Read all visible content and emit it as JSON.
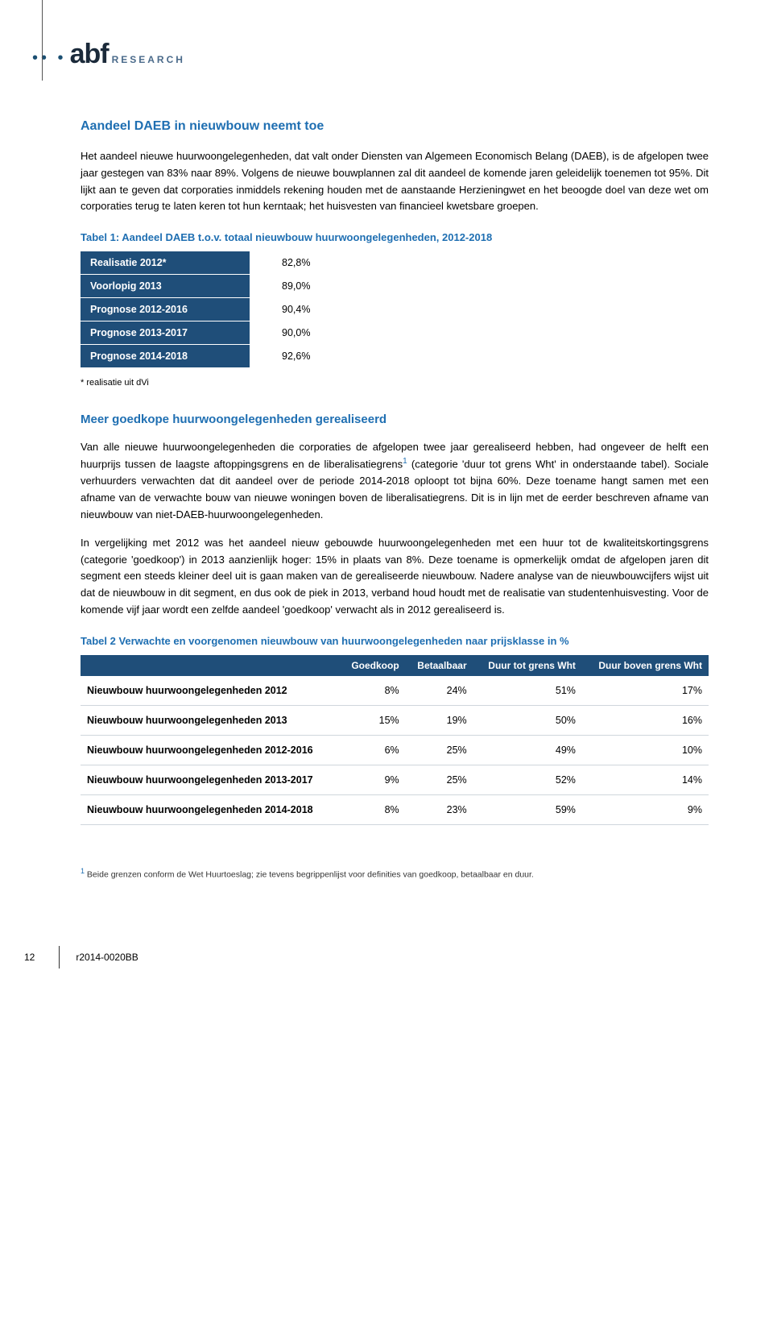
{
  "logo": {
    "dots": "•• •",
    "abf": "abf",
    "research": "RESEARCH"
  },
  "section1": {
    "title": "Aandeel DAEB in nieuwbouw neemt toe",
    "para": "Het aandeel nieuwe huurwoongelegenheden, dat valt onder Diensten van Algemeen Economisch Belang (DAEB), is de afgelopen twee jaar gestegen van 83% naar 89%. Volgens de nieuwe bouwplannen zal dit aandeel de komende jaren geleidelijk toenemen tot 95%. Dit lijkt aan te geven dat corporaties inmiddels rekening houden met de aanstaande Herzieningwet en het beoogde doel van deze wet om corporaties terug te laten keren tot hun kerntaak; het huisvesten van financieel kwetsbare groepen."
  },
  "table1": {
    "caption": "Tabel 1: Aandeel DAEB t.o.v. totaal nieuwbouw huurwoongelegenheden, 2012-2018",
    "rows": [
      {
        "label": "Realisatie 2012*",
        "value": "82,8%"
      },
      {
        "label": "Voorlopig 2013",
        "value": "89,0%"
      },
      {
        "label": "Prognose 2012-2016",
        "value": "90,4%"
      },
      {
        "label": "Prognose 2013-2017",
        "value": "90,0%"
      },
      {
        "label": "Prognose 2014-2018",
        "value": "92,6%"
      }
    ],
    "footnote": "* realisatie uit dVi"
  },
  "section2": {
    "title": "Meer goedkope huurwoongelegenheden gerealiseerd",
    "para1a": "Van alle nieuwe huurwoongelegenheden die corporaties de afgelopen twee jaar gerealiseerd hebben, had ongeveer de helft een huurprijs tussen de laagste aftoppingsgrens en de liberalisatiegrens",
    "para1b": " (categorie 'duur tot grens Wht' in onderstaande tabel). Sociale verhuurders verwachten dat dit aandeel over de periode 2014-2018 oploopt tot bijna 60%. Deze toename hangt samen met een afname van de verwachte bouw van nieuwe woningen boven de liberalisatiegrens. Dit is in lijn met de eerder beschreven afname van nieuwbouw van niet-DAEB-huurwoongelegenheden.",
    "para2": "In vergelijking met 2012 was het aandeel nieuw gebouwde huurwoongelegenheden met een huur tot de kwaliteitskortingsgrens (categorie 'goedkoop') in 2013 aanzienlijk hoger: 15% in plaats van 8%. Deze toename is opmerkelijk omdat de afgelopen jaren dit segment een steeds kleiner deel uit is gaan maken van de gerealiseerde nieuwbouw. Nadere analyse van de nieuwbouwcijfers wijst uit dat de nieuwbouw in dit segment, en dus ook de piek in 2013, verband houd houdt met de realisatie van studentenhuisvesting. Voor de komende vijf jaar wordt een zelfde aandeel 'goedkoop' verwacht als in 2012 gerealiseerd is."
  },
  "table2": {
    "caption": "Tabel 2 Verwachte en voorgenomen nieuwbouw van huurwoongelegenheden naar prijsklasse in %",
    "headers": [
      "",
      "Goedkoop",
      "Betaalbaar",
      "Duur tot grens Wht",
      "Duur boven grens Wht"
    ],
    "rows": [
      {
        "label": "Nieuwbouw huurwoongelegenheden 2012",
        "c1": "8%",
        "c2": "24%",
        "c3": "51%",
        "c4": "17%"
      },
      {
        "label": "Nieuwbouw huurwoongelegenheden 2013",
        "c1": "15%",
        "c2": "19%",
        "c3": "50%",
        "c4": "16%"
      },
      {
        "label": "Nieuwbouw huurwoongelegenheden 2012-2016",
        "c1": "6%",
        "c2": "25%",
        "c3": "49%",
        "c4": "10%"
      },
      {
        "label": "Nieuwbouw huurwoongelegenheden 2013-2017",
        "c1": "9%",
        "c2": "25%",
        "c3": "52%",
        "c4": "14%"
      },
      {
        "label": "Nieuwbouw huurwoongelegenheden 2014-2018",
        "c1": "8%",
        "c2": "23%",
        "c3": "59%",
        "c4": "9%"
      }
    ]
  },
  "footnote": {
    "num": "1",
    "text": " Beide grenzen conform de Wet Huurtoeslag; zie tevens begrippenlijst voor definities van goedkoop, betaalbaar en duur."
  },
  "pagefoot": {
    "num": "12",
    "ref": "r2014-0020BB"
  }
}
